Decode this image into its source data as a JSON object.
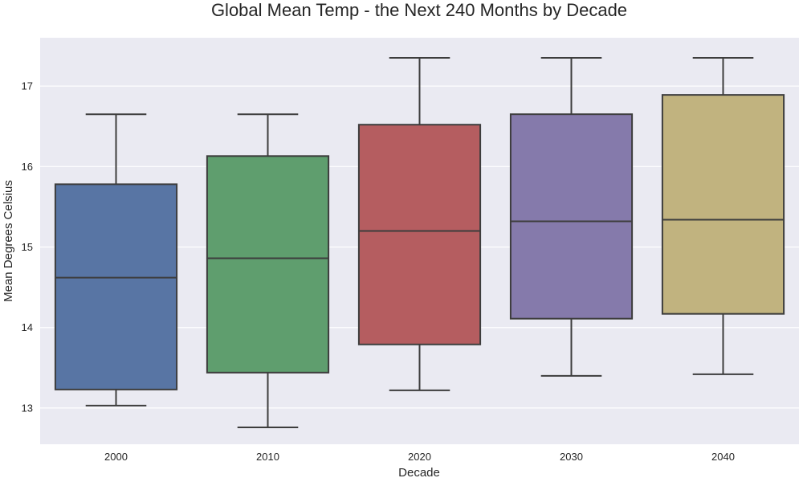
{
  "chart_data": {
    "type": "box",
    "title": "Global Mean Temp - the Next 240 Months by Decade",
    "xlabel": "Decade",
    "ylabel": "Mean Degrees Celsius",
    "ylim": [
      12.55,
      17.6
    ],
    "yticks": [
      13,
      14,
      15,
      16,
      17
    ],
    "grid": true,
    "categories": [
      "2000",
      "2010",
      "2020",
      "2030",
      "2040"
    ],
    "boxes": [
      {
        "category": "2000",
        "whisker_low": 13.03,
        "q1": 13.23,
        "median": 14.62,
        "q3": 15.78,
        "whisker_high": 16.65,
        "color": "#5875a4"
      },
      {
        "category": "2010",
        "whisker_low": 12.76,
        "q1": 13.44,
        "median": 14.86,
        "q3": 16.13,
        "whisker_high": 16.65,
        "color": "#5f9e6e"
      },
      {
        "category": "2020",
        "whisker_low": 13.22,
        "q1": 13.79,
        "median": 15.2,
        "q3": 16.52,
        "whisker_high": 17.35,
        "color": "#b55d60"
      },
      {
        "category": "2030",
        "whisker_low": 13.4,
        "q1": 14.11,
        "median": 15.32,
        "q3": 16.65,
        "whisker_high": 17.35,
        "color": "#857aab"
      },
      {
        "category": "2040",
        "whisker_low": 13.42,
        "q1": 14.17,
        "median": 15.34,
        "q3": 16.89,
        "whisker_high": 17.35,
        "color": "#c1b37f"
      }
    ],
    "colors": {
      "plot_background": "#eaeaf2",
      "grid": "#ffffff",
      "box_edge": "#3d3d3d"
    }
  }
}
